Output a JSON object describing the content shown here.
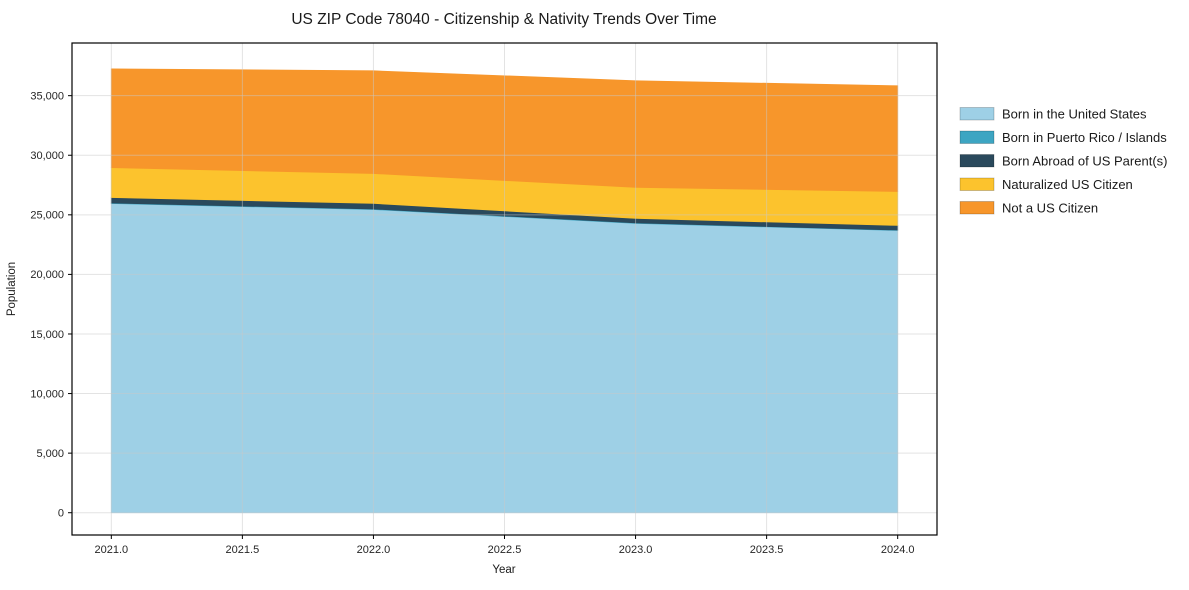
{
  "chart_data": {
    "type": "area",
    "stacked": true,
    "title": "US ZIP Code 78040 - Citizenship & Nativity Trends Over Time",
    "xlabel": "Year",
    "ylabel": "Population",
    "x": [
      2021,
      2022,
      2023,
      2024
    ],
    "series": [
      {
        "name": "Born in the United States",
        "color": "#9ed0e6",
        "values": [
          25950,
          25450,
          24280,
          23690
        ]
      },
      {
        "name": "Born in Puerto Rico / Islands",
        "color": "#3da5c2",
        "values": [
          40,
          40,
          40,
          40
        ]
      },
      {
        "name": "Born Abroad of US Parent(s)",
        "color": "#2a495c",
        "values": [
          460,
          470,
          380,
          380
        ]
      },
      {
        "name": "Naturalized US Citizen",
        "color": "#fcc32d",
        "values": [
          2510,
          2510,
          2600,
          2850
        ]
      },
      {
        "name": "Not a US Citizen",
        "color": "#f7962b",
        "values": [
          8290,
          8620,
          8950,
          8870
        ]
      }
    ],
    "totals": [
      37250,
      37090,
      36250,
      35830
    ],
    "x_ticks": [
      2021.0,
      2021.5,
      2022.0,
      2022.5,
      2023.0,
      2023.5,
      2024.0
    ],
    "x_tick_labels": [
      "2021.0",
      "2021.5",
      "2022.0",
      "2022.5",
      "2023.0",
      "2023.5",
      "2024.0"
    ],
    "y_ticks": [
      0,
      5000,
      10000,
      15000,
      20000,
      25000,
      30000,
      35000
    ],
    "y_tick_labels": [
      "0",
      "5,000",
      "10,000",
      "15,000",
      "20,000",
      "25,000",
      "30,000",
      "35,000"
    ],
    "xlim": [
      2020.85,
      2024.15
    ],
    "ylim": [
      -1870,
      39420
    ],
    "grid": true,
    "legend_position": "right-outside",
    "background_color": "#ffffff",
    "plot_border_color": "#000000"
  }
}
